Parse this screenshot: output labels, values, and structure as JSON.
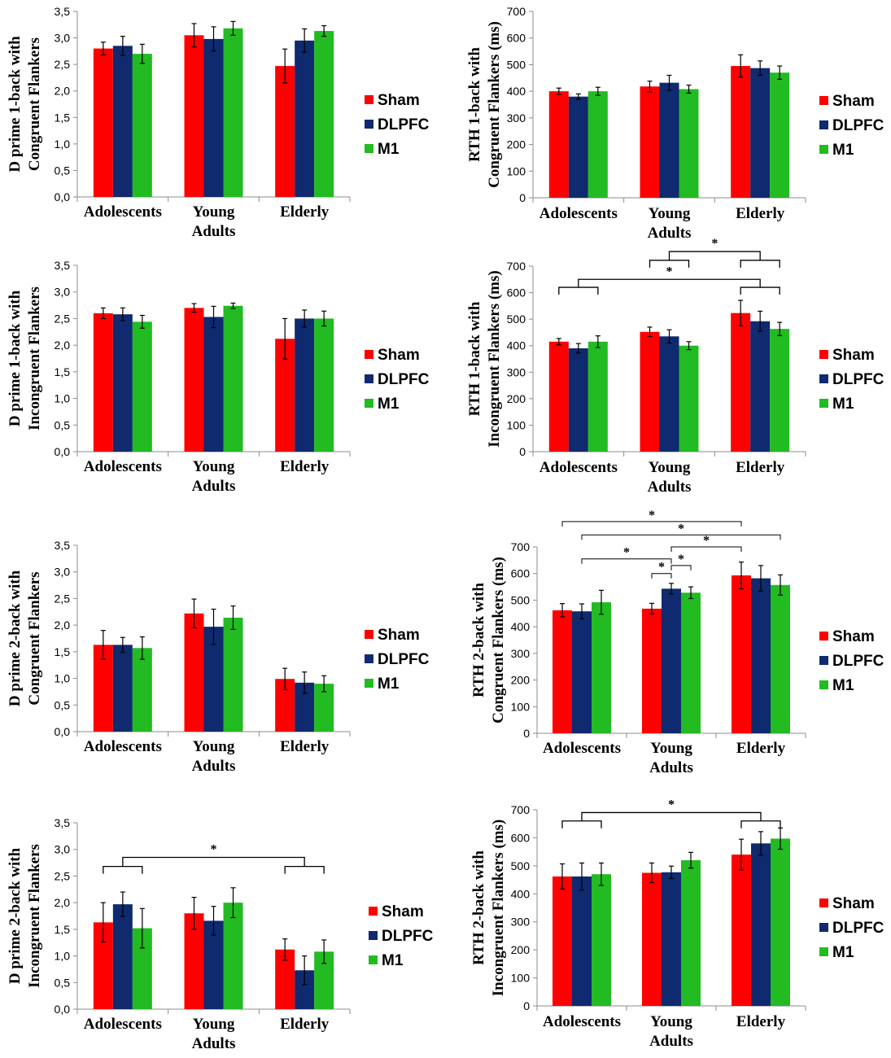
{
  "colors": {
    "sham": "#ff0000",
    "dlpfc": "#0f2a6e",
    "m1": "#22bb22",
    "axis": "#8c8c8c",
    "error": "#000000"
  },
  "legend": [
    "Sham",
    "DLPFC",
    "M1"
  ],
  "chart_data": [
    {
      "type": "bar",
      "ylabel": [
        "D prime 1-back with",
        "Congruent Flankers"
      ],
      "categories": [
        [
          "Adolescents"
        ],
        [
          "Young",
          "Adults"
        ],
        [
          "Elderly"
        ]
      ],
      "ylim": [
        0,
        3.5
      ],
      "ystep": 0.5,
      "tick_decimals": 1,
      "tick_sep": ",",
      "series": [
        {
          "name": "Sham",
          "values": [
            2.8,
            3.05,
            2.47
          ],
          "errors": [
            0.12,
            0.22,
            0.32
          ]
        },
        {
          "name": "DLPFC",
          "values": [
            2.85,
            2.98,
            2.95
          ],
          "errors": [
            0.18,
            0.23,
            0.22
          ]
        },
        {
          "name": "M1",
          "values": [
            2.7,
            3.18,
            3.13
          ],
          "errors": [
            0.18,
            0.13,
            0.1
          ]
        }
      ],
      "annotations": []
    },
    {
      "type": "bar",
      "ylabel": [
        "RTH 1-back with",
        "Congruent Flankers (ms)"
      ],
      "categories": [
        [
          "Adolescents"
        ],
        [
          "Young",
          "Adults"
        ],
        [
          "Elderly"
        ]
      ],
      "ylim": [
        0,
        700
      ],
      "ystep": 100,
      "tick_decimals": 0,
      "tick_sep": ".",
      "series": [
        {
          "name": "Sham",
          "values": [
            400,
            418,
            495
          ],
          "errors": [
            12,
            20,
            42
          ]
        },
        {
          "name": "DLPFC",
          "values": [
            380,
            432,
            487
          ],
          "errors": [
            10,
            28,
            27
          ]
        },
        {
          "name": "M1",
          "values": [
            400,
            408,
            470
          ],
          "errors": [
            15,
            15,
            25
          ]
        }
      ],
      "annotations": []
    },
    {
      "type": "bar",
      "ylabel": [
        "D prime 1-back with",
        "Incongruent Flankers"
      ],
      "categories": [
        [
          "Adolescents"
        ],
        [
          "Young",
          "Adults"
        ],
        [
          "Elderly"
        ]
      ],
      "ylim": [
        0,
        3.5
      ],
      "ystep": 0.5,
      "tick_decimals": 1,
      "tick_sep": ",",
      "series": [
        {
          "name": "Sham",
          "values": [
            2.6,
            2.7,
            2.12
          ],
          "errors": [
            0.1,
            0.08,
            0.38
          ]
        },
        {
          "name": "DLPFC",
          "values": [
            2.58,
            2.53,
            2.5
          ],
          "errors": [
            0.12,
            0.2,
            0.16
          ]
        },
        {
          "name": "M1",
          "values": [
            2.44,
            2.74,
            2.5
          ],
          "errors": [
            0.12,
            0.05,
            0.14
          ]
        }
      ],
      "annotations": []
    },
    {
      "type": "bar",
      "ylabel": [
        "RTH 1-back with",
        "Incongruent Flankers (ms)"
      ],
      "categories": [
        [
          "Adolescents"
        ],
        [
          "Young",
          "Adults"
        ],
        [
          "Elderly"
        ]
      ],
      "ylim": [
        0,
        700
      ],
      "ystep": 100,
      "tick_decimals": 0,
      "tick_sep": ".",
      "series": [
        {
          "name": "Sham",
          "values": [
            415,
            452,
            523
          ],
          "errors": [
            12,
            18,
            48
          ]
        },
        {
          "name": "DLPFC",
          "values": [
            390,
            435,
            492
          ],
          "errors": [
            18,
            25,
            38
          ]
        },
        {
          "name": "M1",
          "values": [
            415,
            400,
            463
          ],
          "errors": [
            22,
            15,
            25
          ]
        }
      ],
      "annotations": [
        {
          "kind": "bracket",
          "a": [
            1,
            0
          ],
          "b": [
            1,
            2
          ],
          "y": 722,
          "label": "*"
        },
        {
          "kind": "bracket",
          "a": [
            2,
            0
          ],
          "b": [
            2,
            2
          ],
          "y": 722,
          "label": ""
        },
        {
          "kind": "join",
          "left": [
            1,
            1
          ],
          "right": [
            2,
            1
          ],
          "y": 722,
          "top": 755,
          "label": "*"
        },
        {
          "kind": "bracket",
          "a": [
            0,
            0
          ],
          "b": [
            0,
            2
          ],
          "y": 620,
          "label": ""
        },
        {
          "kind": "bracket",
          "a": [
            2,
            0
          ],
          "b": [
            2,
            2
          ],
          "y": 620,
          "label": ""
        },
        {
          "kind": "join",
          "left": [
            0,
            1
          ],
          "right": [
            2,
            1
          ],
          "y": 620,
          "top": 650,
          "label": "*"
        }
      ]
    },
    {
      "type": "bar",
      "ylabel": [
        "D prime 2-back with",
        "Congruent Flankers"
      ],
      "categories": [
        [
          "Adolescents"
        ],
        [
          "Young",
          "Adults"
        ],
        [
          "Elderly"
        ]
      ],
      "ylim": [
        0,
        3.5
      ],
      "ystep": 0.5,
      "tick_decimals": 1,
      "tick_sep": ",",
      "series": [
        {
          "name": "Sham",
          "values": [
            1.63,
            2.22,
            0.99
          ],
          "errors": [
            0.27,
            0.27,
            0.2
          ]
        },
        {
          "name": "DLPFC",
          "values": [
            1.63,
            1.97,
            0.92
          ],
          "errors": [
            0.14,
            0.33,
            0.2
          ]
        },
        {
          "name": "M1",
          "values": [
            1.57,
            2.14,
            0.9
          ],
          "errors": [
            0.21,
            0.22,
            0.15
          ]
        }
      ],
      "annotations": []
    },
    {
      "type": "bar",
      "ylabel": [
        "RTH 2-back with",
        "Congruent Flankers (ms)"
      ],
      "categories": [
        [
          "Adolescents"
        ],
        [
          "Young",
          "Adults"
        ],
        [
          "Elderly"
        ]
      ],
      "ylim": [
        0,
        700
      ],
      "ystep": 100,
      "tick_decimals": 0,
      "tick_sep": ".",
      "series": [
        {
          "name": "Sham",
          "values": [
            462,
            468,
            593
          ],
          "errors": [
            25,
            20,
            50
          ]
        },
        {
          "name": "DLPFC",
          "values": [
            458,
            543,
            582
          ],
          "errors": [
            28,
            20,
            48
          ]
        },
        {
          "name": "M1",
          "values": [
            492,
            528,
            557
          ],
          "errors": [
            45,
            22,
            38
          ]
        }
      ],
      "annotations": [
        {
          "kind": "line",
          "x1": [
            0,
            0
          ],
          "x2": [
            2,
            0
          ],
          "y": 795,
          "drops": true,
          "label": "*"
        },
        {
          "kind": "line",
          "x1": [
            0,
            1
          ],
          "x2": [
            2,
            2
          ],
          "y": 745,
          "drops": true,
          "label": "*"
        },
        {
          "kind": "line",
          "x1": [
            1,
            1
          ],
          "x2": [
            2,
            0
          ],
          "y": 700,
          "drops": true,
          "label": "*"
        },
        {
          "kind": "line",
          "x1": [
            0,
            1
          ],
          "x2": [
            1,
            1
          ],
          "y": 655,
          "drops": true,
          "label": "*"
        },
        {
          "kind": "line",
          "x1": [
            1,
            1
          ],
          "x2": [
            1,
            2
          ],
          "y": 630,
          "drops": true,
          "label": "*"
        },
        {
          "kind": "line",
          "x1": [
            1,
            0
          ],
          "x2": [
            1,
            1
          ],
          "y": 600,
          "drops": true,
          "label": "*"
        }
      ]
    },
    {
      "type": "bar",
      "ylabel": [
        "D prime 2-back with",
        "Incongruent Flankers"
      ],
      "categories": [
        [
          "Adolescents"
        ],
        [
          "Young",
          "Adults"
        ],
        [
          "Elderly"
        ]
      ],
      "ylim": [
        0,
        3.5
      ],
      "ystep": 0.5,
      "tick_decimals": 1,
      "tick_sep": ",",
      "series": [
        {
          "name": "Sham",
          "values": [
            1.63,
            1.8,
            1.12
          ],
          "errors": [
            0.37,
            0.3,
            0.2
          ]
        },
        {
          "name": "DLPFC",
          "values": [
            1.97,
            1.66,
            0.73
          ],
          "errors": [
            0.23,
            0.27,
            0.27
          ]
        },
        {
          "name": "M1",
          "values": [
            1.52,
            2.0,
            1.08
          ],
          "errors": [
            0.37,
            0.28,
            0.22
          ]
        }
      ],
      "annotations": [
        {
          "kind": "bracket",
          "a": [
            0,
            0
          ],
          "b": [
            0,
            2
          ],
          "y": 2.68,
          "label": ""
        },
        {
          "kind": "bracket",
          "a": [
            2,
            0
          ],
          "b": [
            2,
            2
          ],
          "y": 2.68,
          "label": ""
        },
        {
          "kind": "join",
          "left": [
            0,
            1
          ],
          "right": [
            2,
            1
          ],
          "y": 2.68,
          "top": 2.85,
          "label": "*"
        }
      ]
    },
    {
      "type": "bar",
      "ylabel": [
        "RTH 2-back with",
        "Incongruent Flankers (ms)"
      ],
      "categories": [
        [
          "Adolescents"
        ],
        [
          "Young",
          "Adults"
        ],
        [
          "Elderly"
        ]
      ],
      "ylim": [
        0,
        700
      ],
      "ystep": 100,
      "tick_decimals": 0,
      "tick_sep": ".",
      "series": [
        {
          "name": "Sham",
          "values": [
            462,
            475,
            540
          ],
          "errors": [
            45,
            35,
            55
          ]
        },
        {
          "name": "DLPFC",
          "values": [
            462,
            477,
            580
          ],
          "errors": [
            48,
            22,
            42
          ]
        },
        {
          "name": "M1",
          "values": [
            470,
            520,
            597
          ],
          "errors": [
            40,
            28,
            38
          ]
        }
      ],
      "annotations": [
        {
          "kind": "bracket",
          "a": [
            0,
            0
          ],
          "b": [
            0,
            2
          ],
          "y": 660,
          "label": ""
        },
        {
          "kind": "bracket",
          "a": [
            2,
            0
          ],
          "b": [
            2,
            2
          ],
          "y": 660,
          "label": ""
        },
        {
          "kind": "join",
          "left": [
            0,
            1
          ],
          "right": [
            2,
            1
          ],
          "y": 660,
          "top": 690,
          "label": "*"
        }
      ]
    }
  ]
}
